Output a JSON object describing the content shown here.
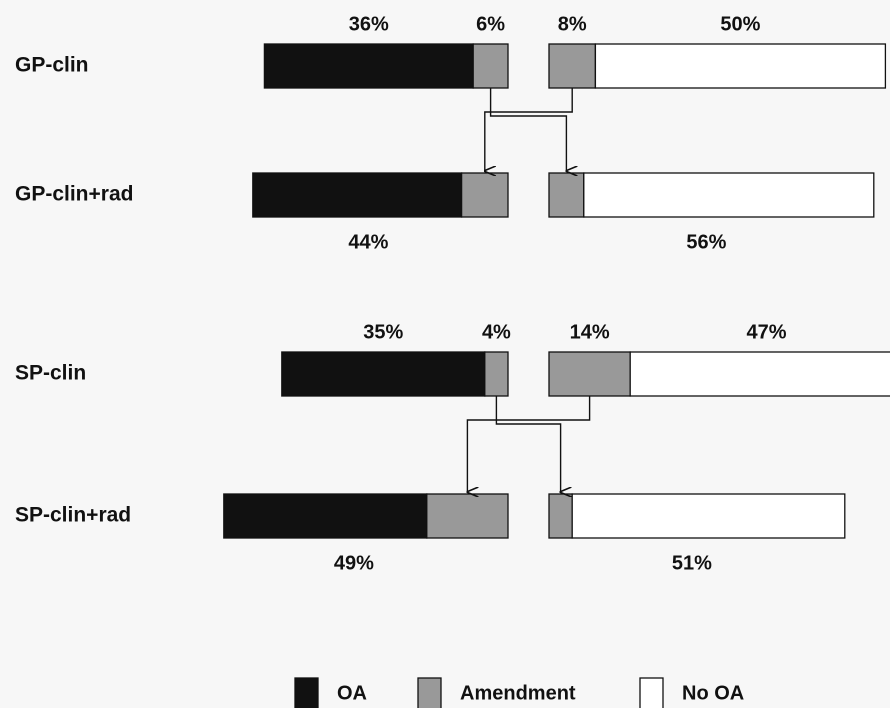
{
  "chart_data": {
    "type": "split-bar",
    "categories": [
      "GP-clin",
      "GP-clin+rad",
      "SP-clin",
      "SP-clin+rad"
    ],
    "series": [
      {
        "name": "OA",
        "color": "#111111",
        "side": "left",
        "values": [
          36,
          36,
          35,
          35
        ],
        "value_labels": [
          "36%",
          null,
          "35%",
          null
        ]
      },
      {
        "name": "Amendment",
        "color": "#999999",
        "side": "left",
        "values": [
          6,
          8,
          4,
          14
        ],
        "value_labels": [
          "6%",
          null,
          "4%",
          null
        ]
      },
      {
        "name": "Amendment",
        "color": "#999999",
        "side": "right",
        "values": [
          8,
          6,
          14,
          4
        ],
        "value_labels": [
          "8%",
          null,
          "14%",
          null
        ]
      },
      {
        "name": "No OA",
        "color": "#ffffff",
        "side": "right",
        "values": [
          50,
          50,
          47,
          47
        ],
        "value_labels": [
          "50%",
          null,
          "47%",
          null
        ]
      }
    ],
    "totals": [
      {
        "side": "left",
        "values": [
          null,
          44,
          null,
          49
        ],
        "value_labels": [
          null,
          "44%",
          null,
          "49%"
        ]
      },
      {
        "side": "right",
        "values": [
          null,
          56,
          null,
          51
        ],
        "value_labels": [
          null,
          "56%",
          null,
          "51%"
        ]
      }
    ]
  }
}
